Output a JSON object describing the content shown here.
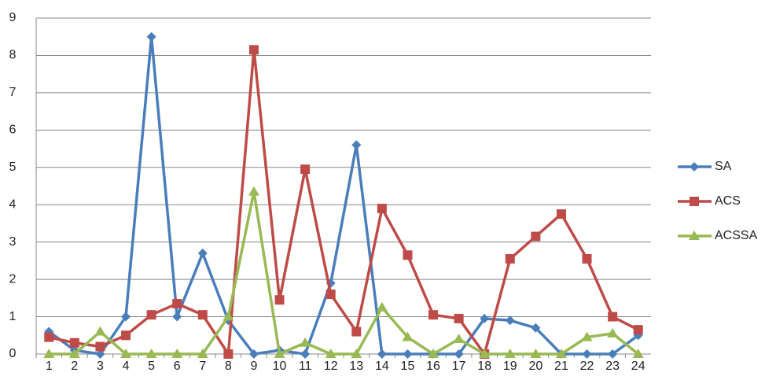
{
  "chart_data": {
    "type": "line",
    "categories": [
      "1",
      "2",
      "3",
      "4",
      "5",
      "6",
      "7",
      "8",
      "9",
      "10",
      "11",
      "12",
      "13",
      "14",
      "15",
      "16",
      "17",
      "18",
      "19",
      "20",
      "21",
      "22",
      "23",
      "24"
    ],
    "series": [
      {
        "name": "SA",
        "color": "#4a7ebb",
        "marker": "diamond",
        "values": [
          0.6,
          0.1,
          0,
          1.0,
          8.5,
          1.0,
          2.7,
          0.9,
          0,
          0.1,
          0,
          1.9,
          5.6,
          0,
          0,
          0,
          0,
          0.95,
          0.9,
          0.7,
          0,
          0,
          0,
          0.5
        ]
      },
      {
        "name": "ACS",
        "color": "#be4b48",
        "marker": "square",
        "values": [
          0.45,
          0.3,
          0.2,
          0.5,
          1.05,
          1.35,
          1.05,
          0,
          8.15,
          1.45,
          4.95,
          1.6,
          0.6,
          3.9,
          2.65,
          1.05,
          0.95,
          0,
          2.55,
          3.15,
          3.75,
          2.55,
          1.0,
          0.65
        ]
      },
      {
        "name": "ACSSA",
        "color": "#98b954",
        "marker": "triangle",
        "values": [
          0,
          0,
          0.6,
          0,
          0,
          0,
          0,
          1.0,
          4.35,
          0,
          0.3,
          0,
          0,
          1.25,
          0.45,
          0,
          0.4,
          0,
          0,
          0,
          0,
          0.45,
          0.55,
          0
        ]
      }
    ],
    "ylim": [
      0,
      9
    ],
    "yticks": [
      0,
      1,
      2,
      3,
      4,
      5,
      6,
      7,
      8,
      9
    ],
    "grid": true,
    "legend": "right"
  }
}
